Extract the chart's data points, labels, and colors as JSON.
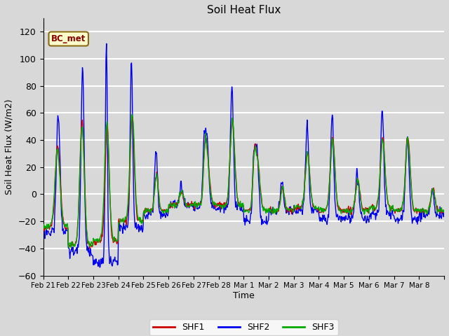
{
  "title": "Soil Heat Flux",
  "xlabel": "Time",
  "ylabel": "Soil Heat Flux (W/m2)",
  "ylim": [
    -60,
    130
  ],
  "shf1_color": "#cc0000",
  "shf2_color": "#0000ee",
  "shf3_color": "#00aa00",
  "legend_labels": [
    "SHF1",
    "SHF2",
    "SHF3"
  ],
  "annotation_text": "BC_met",
  "bg_color": "#d8d8d8",
  "plot_bg_color": "#d8d8d8",
  "grid_color": "#ffffff",
  "n_days": 16,
  "date_labels": [
    "Feb 21",
    "Feb 22",
    "Feb 23",
    "Feb 24",
    "Feb 25",
    "Feb 26",
    "Feb 27",
    "Feb 28",
    "Mar 1",
    "Mar 2",
    "Mar 3",
    "Mar 4",
    "Mar 5",
    "Mar 6",
    "Mar 7",
    "Mar 8"
  ],
  "line_width": 1.0
}
